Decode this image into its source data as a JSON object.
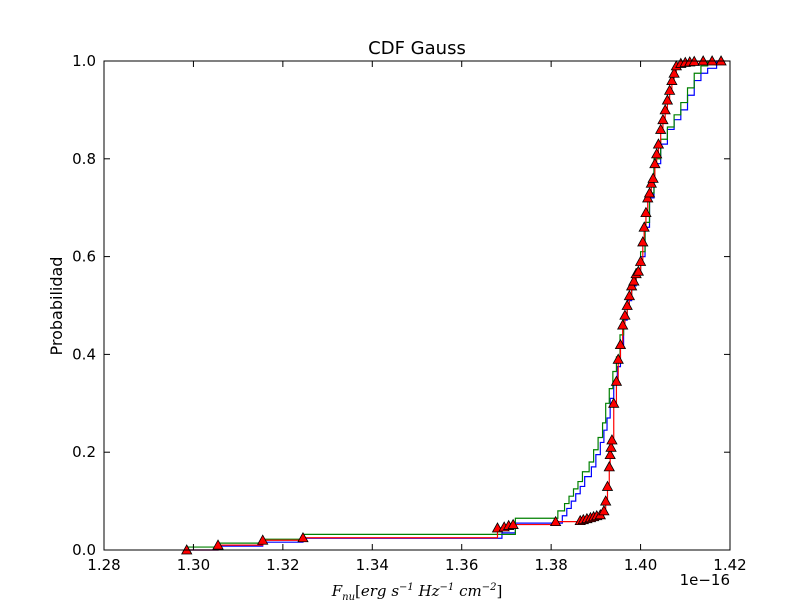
{
  "chart_data": {
    "type": "line",
    "title": "CDF Gauss",
    "xlabel": "F_nu[erg s^-1 Hz^-1 cm^-2]",
    "xlabel_parts": {
      "base": "F",
      "sub": "nu",
      "s1": "erg",
      "s2": "s",
      "sup1": "−1",
      "s3": "Hz",
      "sup2": "−1",
      "s4": "cm",
      "sup3": "−2"
    },
    "ylabel": "Probabilidad",
    "xlim": [
      1.28,
      1.42
    ],
    "ylim": [
      0.0,
      1.0
    ],
    "x_offset_label": "1e−16",
    "xticks": [
      "1.28",
      "1.30",
      "1.32",
      "1.34",
      "1.36",
      "1.38",
      "1.40",
      "1.42"
    ],
    "xtick_values": [
      1.28,
      1.3,
      1.32,
      1.34,
      1.36,
      1.38,
      1.4,
      1.42
    ],
    "yticks": [
      "0.0",
      "0.2",
      "0.4",
      "0.6",
      "0.8",
      "1.0"
    ],
    "ytick_values": [
      0.0,
      0.2,
      0.4,
      0.6,
      0.8,
      1.0
    ],
    "grid": false,
    "legend": "none",
    "series": [
      {
        "color": "#0000ff",
        "marker": "none",
        "step_x": [
          1.2985,
          1.3055,
          1.3155,
          1.3245,
          1.369,
          1.372,
          1.3825,
          1.3835,
          1.3845,
          1.3855,
          1.3865,
          1.3875,
          1.389,
          1.39,
          1.391,
          1.3918,
          1.3925,
          1.3932,
          1.394,
          1.3948,
          1.3955,
          1.3962,
          1.397,
          1.398,
          1.399,
          1.4,
          1.401,
          1.402,
          1.403,
          1.4045,
          1.406,
          1.4075,
          1.409,
          1.4105,
          1.412,
          1.4135,
          1.415,
          1.417
        ],
        "step_y": [
          0.0,
          0.008,
          0.016,
          0.024,
          0.035,
          0.055,
          0.07,
          0.085,
          0.1,
          0.115,
          0.13,
          0.15,
          0.17,
          0.195,
          0.22,
          0.245,
          0.27,
          0.31,
          0.345,
          0.375,
          0.42,
          0.47,
          0.51,
          0.54,
          0.565,
          0.6,
          0.66,
          0.72,
          0.79,
          0.83,
          0.86,
          0.88,
          0.9,
          0.93,
          0.96,
          0.975,
          0.985,
          1.0
        ]
      },
      {
        "color": "#008000",
        "marker": "none",
        "step_x": [
          1.2985,
          1.3055,
          1.3155,
          1.3245,
          1.372,
          1.3815,
          1.383,
          1.384,
          1.385,
          1.386,
          1.387,
          1.3885,
          1.3895,
          1.3905,
          1.3915,
          1.3922,
          1.393,
          1.3938,
          1.3946,
          1.3954,
          1.3962,
          1.397,
          1.398,
          1.399,
          1.4,
          1.401,
          1.402,
          1.403,
          1.4045,
          1.406,
          1.4075,
          1.409,
          1.4105,
          1.412,
          1.4135,
          1.415
        ],
        "step_y": [
          0.006,
          0.014,
          0.022,
          0.032,
          0.065,
          0.08,
          0.095,
          0.11,
          0.125,
          0.14,
          0.16,
          0.18,
          0.205,
          0.23,
          0.26,
          0.3,
          0.33,
          0.365,
          0.395,
          0.44,
          0.48,
          0.52,
          0.55,
          0.575,
          0.61,
          0.67,
          0.73,
          0.8,
          0.84,
          0.865,
          0.89,
          0.915,
          0.945,
          0.975,
          0.99,
          1.0
        ]
      },
      {
        "color": "#ff0000",
        "marker": "triangle",
        "marker_fill": "#ff0000",
        "step_x": [
          1.2985,
          1.3055,
          1.3155,
          1.3245,
          1.368,
          1.3695,
          1.3705,
          1.3715,
          1.381,
          1.3865,
          1.3872,
          1.388,
          1.3888,
          1.3895,
          1.3902,
          1.391,
          1.3918,
          1.3922,
          1.3926,
          1.393,
          1.3932,
          1.3934,
          1.3936,
          1.394,
          1.3946,
          1.395,
          1.3955,
          1.396,
          1.3965,
          1.397,
          1.3975,
          1.398,
          1.3985,
          1.399,
          1.3995,
          1.4,
          1.4005,
          1.4008,
          1.4012,
          1.4016,
          1.402,
          1.4024,
          1.4028,
          1.4032,
          1.4036,
          1.404,
          1.4045,
          1.405,
          1.4055,
          1.406,
          1.4065,
          1.407,
          1.4075,
          1.408,
          1.409,
          1.41,
          1.411,
          1.412,
          1.414,
          1.416,
          1.418
        ],
        "step_y": [
          0.0,
          0.01,
          0.02,
          0.025,
          0.045,
          0.047,
          0.05,
          0.052,
          0.058,
          0.06,
          0.062,
          0.064,
          0.066,
          0.068,
          0.07,
          0.072,
          0.08,
          0.1,
          0.13,
          0.17,
          0.195,
          0.21,
          0.225,
          0.3,
          0.345,
          0.39,
          0.42,
          0.46,
          0.48,
          0.5,
          0.52,
          0.54,
          0.55,
          0.565,
          0.57,
          0.59,
          0.63,
          0.66,
          0.69,
          0.72,
          0.73,
          0.75,
          0.76,
          0.79,
          0.81,
          0.83,
          0.86,
          0.88,
          0.9,
          0.92,
          0.94,
          0.96,
          0.975,
          0.99,
          0.995,
          0.997,
          0.998,
          0.999,
          1.0,
          1.0,
          1.0
        ]
      }
    ]
  }
}
